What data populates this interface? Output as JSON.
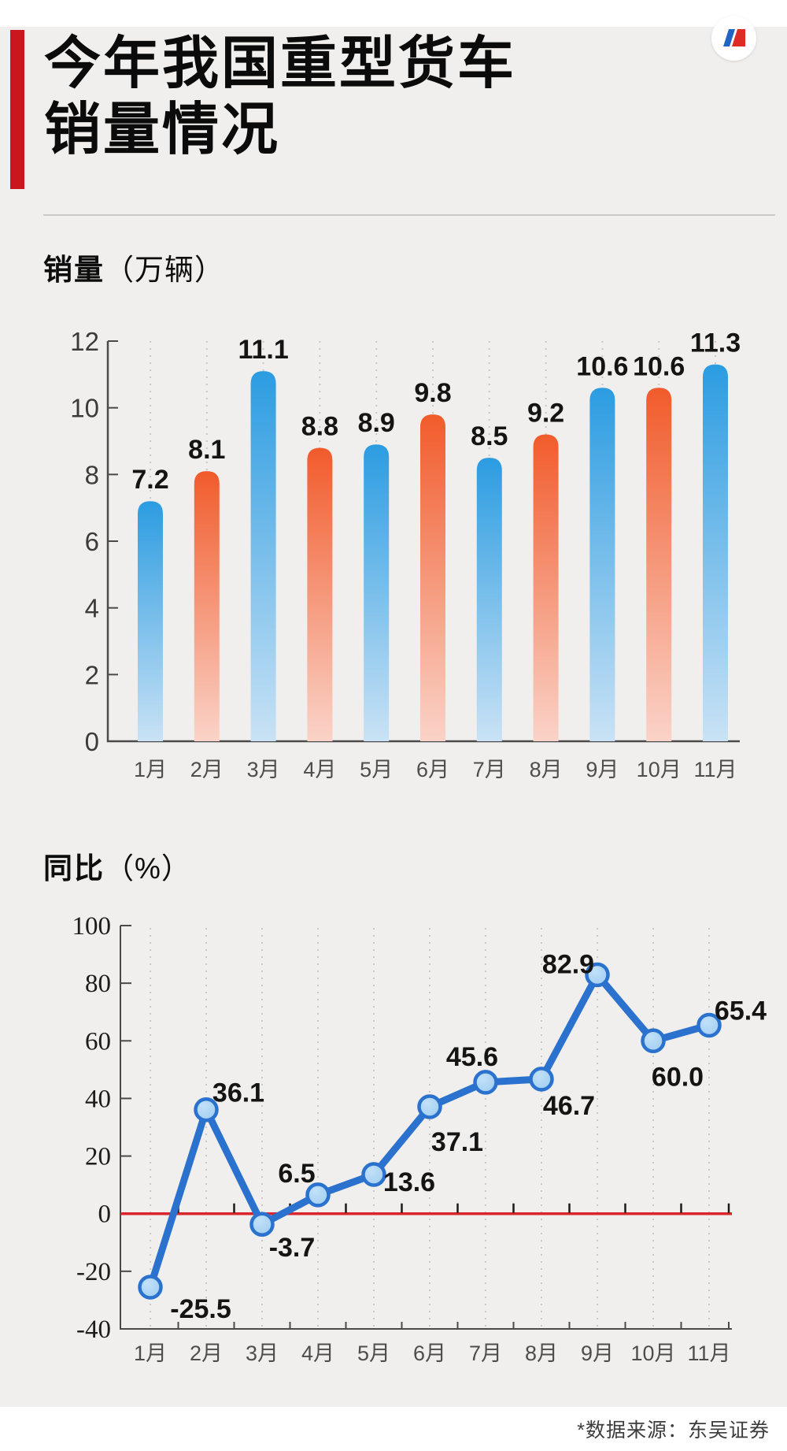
{
  "page": {
    "background": "#f0efed",
    "accent_red": "#c9161f",
    "title_lines": [
      "今年我国重型货车",
      "销量情况"
    ],
    "brand_icon": "n-logo-icon",
    "source_note": "*数据来源：东吴证券"
  },
  "sections": [
    {
      "title_bold": "销量",
      "title_unit": "（万辆）"
    },
    {
      "title_bold": "同比",
      "title_unit": "（%）"
    }
  ],
  "chart_data": [
    {
      "type": "bar",
      "title": "销量（万辆）",
      "categories": [
        "1月",
        "2月",
        "3月",
        "4月",
        "5月",
        "6月",
        "7月",
        "8月",
        "9月",
        "10月",
        "11月"
      ],
      "values": [
        7.2,
        8.1,
        11.1,
        8.8,
        8.9,
        9.8,
        8.5,
        9.2,
        10.6,
        10.6,
        11.3
      ],
      "ylim": [
        0,
        12
      ],
      "yticks": [
        0,
        2,
        4,
        6,
        8,
        10,
        12
      ],
      "xlabel": "",
      "ylabel": "销量（万辆）",
      "grid": "dotted-vertical",
      "value_labels": true,
      "colors": {
        "odd_month_top": "#2b9ce1",
        "odd_month_bottom": "#c9e2f5",
        "even_month_top": "#f15b2b",
        "even_month_bottom": "#fad3c8",
        "axis": "#4a4a4a",
        "tick_text": "#3b3b3b",
        "grid": "#c9c7c5",
        "value_text": "#141414",
        "month_text": "#4f4d4b"
      }
    },
    {
      "type": "line",
      "title": "同比（%）",
      "categories": [
        "1月",
        "2月",
        "3月",
        "4月",
        "5月",
        "6月",
        "7月",
        "8月",
        "9月",
        "10月",
        "11月"
      ],
      "values": [
        -25.5,
        36.1,
        -3.7,
        6.5,
        13.6,
        37.1,
        45.6,
        46.7,
        82.9,
        60.0,
        65.4
      ],
      "ylim": [
        -40,
        100
      ],
      "yticks": [
        -40,
        -20,
        0,
        20,
        40,
        60,
        80,
        100
      ],
      "xlabel": "",
      "ylabel": "同比（%）",
      "grid": "dotted-vertical",
      "value_labels": true,
      "colors": {
        "line": "#2b72cf",
        "marker_fill": "#c2e1f8",
        "marker_fill_edge": "#9dcbf0",
        "marker_ring": "#2b72cf",
        "zero_line": "#d9252b",
        "axis": "#4a4a4a",
        "tick_text": "#1c1c1c",
        "grid": "#c9c7c5",
        "value_text": "#141414",
        "month_text": "#4f4d4b"
      }
    }
  ]
}
